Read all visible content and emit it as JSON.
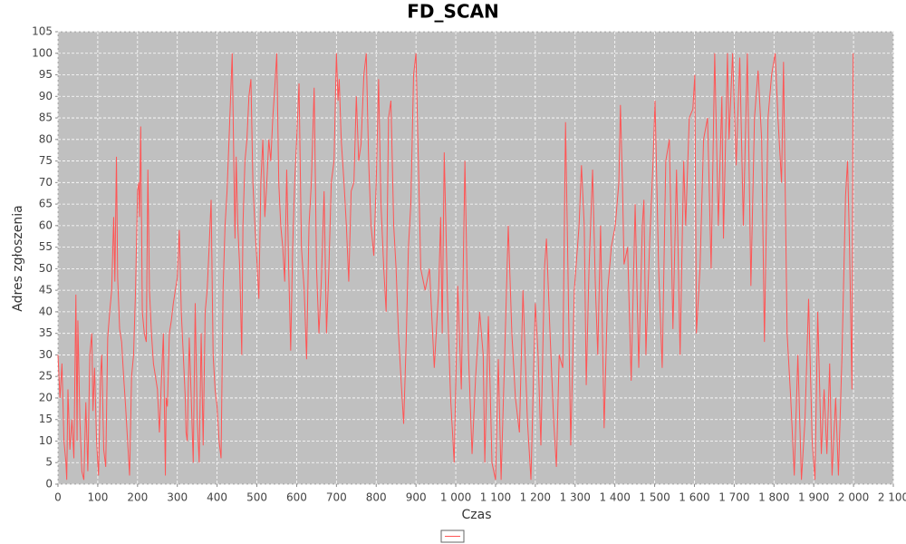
{
  "chart_data": {
    "type": "line",
    "title": "FD_SCAN",
    "x_label": "Czas",
    "y_label": "Adres zgłoszenia",
    "x": [
      0,
      5,
      10,
      15,
      20,
      22,
      25,
      30,
      35,
      40,
      45,
      48,
      50,
      55,
      60,
      65,
      70,
      75,
      80,
      85,
      88,
      92,
      97,
      102,
      107,
      110,
      115,
      120,
      125,
      130,
      135,
      140,
      143,
      147,
      150,
      155,
      160,
      165,
      170,
      175,
      180,
      185,
      190,
      195,
      200,
      203,
      205,
      208,
      212,
      217,
      222,
      226,
      230,
      235,
      240,
      245,
      250,
      255,
      260,
      265,
      270,
      272,
      275,
      280,
      285,
      290,
      295,
      300,
      305,
      310,
      315,
      320,
      322,
      325,
      330,
      335,
      340,
      345,
      350,
      355,
      360,
      365,
      370,
      375,
      380,
      385,
      390,
      395,
      400,
      405,
      410,
      415,
      420,
      425,
      430,
      438,
      442,
      445,
      448,
      452,
      457,
      462,
      465,
      470,
      475,
      480,
      485,
      490,
      495,
      500,
      505,
      510,
      515,
      520,
      525,
      530,
      535,
      540,
      545,
      550,
      555,
      560,
      565,
      570,
      575,
      580,
      585,
      590,
      595,
      600,
      606,
      612,
      619,
      625,
      631,
      637,
      644,
      650,
      656,
      662,
      669,
      675,
      681,
      687,
      694,
      700,
      704,
      707,
      712,
      719,
      725,
      731,
      737,
      744,
      750,
      756,
      762,
      769,
      775,
      781,
      787,
      794,
      800,
      806,
      812,
      819,
      825,
      831,
      837,
      844,
      850,
      856,
      862,
      869,
      875,
      881,
      887,
      894,
      900,
      912,
      923,
      934,
      946,
      957,
      962,
      966,
      971,
      980,
      987,
      996,
      1005,
      1014,
      1023,
      1032,
      1041,
      1050,
      1060,
      1069,
      1073,
      1082,
      1091,
      1100,
      1107,
      1114,
      1123,
      1132,
      1141,
      1150,
      1160,
      1169,
      1180,
      1189,
      1200,
      1207,
      1214,
      1223,
      1228,
      1237,
      1246,
      1253,
      1260,
      1269,
      1276,
      1282,
      1289,
      1298,
      1310,
      1316,
      1323,
      1328,
      1335,
      1344,
      1351,
      1357,
      1364,
      1373,
      1382,
      1391,
      1401,
      1410,
      1414,
      1419,
      1423,
      1432,
      1441,
      1451,
      1460,
      1469,
      1473,
      1478,
      1487,
      1496,
      1501,
      1510,
      1519,
      1528,
      1537,
      1546,
      1555,
      1564,
      1573,
      1578,
      1587,
      1596,
      1601,
      1605,
      1614,
      1623,
      1633,
      1642,
      1651,
      1660,
      1669,
      1673,
      1683,
      1687,
      1696,
      1705,
      1714,
      1723,
      1733,
      1742,
      1751,
      1760,
      1769,
      1776,
      1785,
      1794,
      1803,
      1810,
      1819,
      1824,
      1833,
      1842,
      1851,
      1860,
      1869,
      1878,
      1887,
      1896,
      1903,
      1910,
      1919,
      1926,
      1933,
      1940,
      1946,
      1955,
      1962,
      1971,
      1980,
      1985,
      1990,
      1996,
      1999
    ],
    "series": [
      {
        "color": "#ff5555",
        "values": [
          30,
          20,
          28,
          10,
          5,
          1,
          22,
          8,
          15,
          6,
          44,
          10,
          38,
          15,
          3,
          1,
          19,
          3,
          30,
          35,
          17,
          27,
          10,
          2,
          25,
          30,
          8,
          4,
          34,
          40,
          45,
          62,
          47,
          76,
          48,
          36,
          33,
          25,
          18,
          10,
          2,
          25,
          30,
          45,
          68,
          70,
          62,
          83,
          40,
          35,
          33,
          73,
          45,
          35,
          28,
          25,
          22,
          12,
          24,
          35,
          2,
          20,
          18,
          35,
          38,
          42,
          45,
          48,
          59,
          40,
          30,
          20,
          12,
          10,
          34,
          20,
          5,
          42,
          15,
          5,
          35,
          9,
          40,
          45,
          55,
          66,
          30,
          22,
          18,
          10,
          6,
          45,
          60,
          68,
          80,
          100,
          75,
          57,
          76,
          60,
          50,
          30,
          60,
          75,
          80,
          90,
          94,
          70,
          60,
          52,
          43,
          70,
          80,
          62,
          70,
          80,
          75,
          85,
          92,
          100,
          70,
          60,
          55,
          47,
          73,
          50,
          31,
          55,
          70,
          80,
          93,
          55,
          45,
          29,
          60,
          70,
          92,
          50,
          35,
          47,
          68,
          35,
          50,
          70,
          75,
          100,
          89,
          94,
          80,
          70,
          60,
          47,
          68,
          70,
          90,
          75,
          79,
          95,
          100,
          75,
          60,
          53,
          70,
          94,
          65,
          50,
          40,
          85,
          89,
          60,
          50,
          35,
          25,
          14,
          32,
          55,
          65,
          95,
          100,
          50,
          45,
          50,
          27,
          45,
          62,
          35,
          77,
          40,
          20,
          5,
          46,
          22,
          75,
          30,
          7,
          25,
          40,
          30,
          5,
          39,
          5,
          1,
          29,
          1,
          30,
          60,
          35,
          20,
          12,
          45,
          15,
          1,
          42,
          30,
          9,
          50,
          57,
          35,
          15,
          4,
          30,
          27,
          84,
          50,
          9,
          45,
          60,
          74,
          60,
          23,
          50,
          73,
          46,
          30,
          60,
          13,
          45,
          55,
          60,
          70,
          88,
          70,
          51,
          55,
          24,
          65,
          27,
          60,
          66,
          30,
          55,
          75,
          89,
          50,
          27,
          75,
          80,
          36,
          73,
          30,
          75,
          60,
          85,
          87,
          95,
          35,
          50,
          80,
          85,
          50,
          100,
          60,
          90,
          57,
          100,
          80,
          100,
          74,
          99,
          60,
          100,
          46,
          85,
          96,
          80,
          33,
          85,
          95,
          100,
          85,
          70,
          98,
          35,
          20,
          2,
          30,
          1,
          15,
          43,
          10,
          1,
          40,
          7,
          22,
          7,
          28,
          2,
          20,
          2,
          30,
          67,
          75,
          55,
          22,
          100
        ]
      }
    ],
    "xlim": [
      0,
      2100
    ],
    "ylim": [
      0,
      105
    ],
    "xticks": [
      0,
      100,
      200,
      300,
      400,
      500,
      600,
      700,
      800,
      900,
      {
        "value": 1000,
        "label": "1 000"
      },
      {
        "value": 1100,
        "label": "1 100"
      },
      {
        "value": 1200,
        "label": "1 200"
      },
      {
        "value": 1300,
        "label": "1 300"
      },
      {
        "value": 1400,
        "label": "1 400"
      },
      {
        "value": 1500,
        "label": "1 500"
      },
      {
        "value": 1600,
        "label": "1 600"
      },
      {
        "value": 1700,
        "label": "1 700"
      },
      {
        "value": 1800,
        "label": "1 800"
      },
      {
        "value": 1900,
        "label": "1 900"
      },
      {
        "value": 2000,
        "label": "2 000"
      },
      {
        "value": 2100,
        "label": "2 100"
      }
    ],
    "yticks": [
      0,
      5,
      10,
      15,
      20,
      25,
      30,
      35,
      40,
      45,
      50,
      55,
      60,
      65,
      70,
      75,
      80,
      85,
      90,
      95,
      100,
      105
    ],
    "grid": true,
    "plot_background": "#c0c0c0"
  }
}
